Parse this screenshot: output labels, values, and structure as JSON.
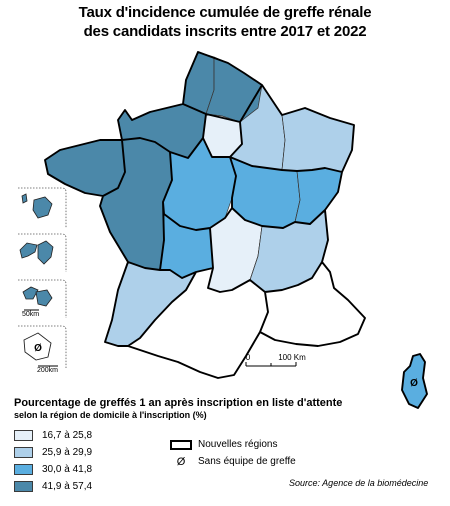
{
  "title_lines": [
    "Taux d'incidence cumulée de greffe rénale",
    "des candidats inscrits entre 2017 et 2022"
  ],
  "legend": {
    "title": "Pourcentage de greffés 1 an après inscription en liste d'attente",
    "subtitle": "selon la région de domicile à l'inscription (%)",
    "classes": [
      {
        "label": "16,7 à 25,8",
        "color": "#e6f0f9"
      },
      {
        "label": "25,9 à 29,9",
        "color": "#aed0ea"
      },
      {
        "label": "30,0 à 41,8",
        "color": "#5aaee0"
      },
      {
        "label": "41,9 à 57,4",
        "color": "#4b88a9"
      }
    ],
    "regions_label": "Nouvelles régions",
    "no_team_symbol": "Ø",
    "no_team_label": "Sans équipe de greffe"
  },
  "scale": {
    "zero": "0",
    "main": "100 Km",
    "inset_a": "50km",
    "inset_b": "200km"
  },
  "source": "Source: Agence de la biomédecine",
  "colors": {
    "stroke": "#3a3a3a",
    "region_stroke": "#000000"
  }
}
